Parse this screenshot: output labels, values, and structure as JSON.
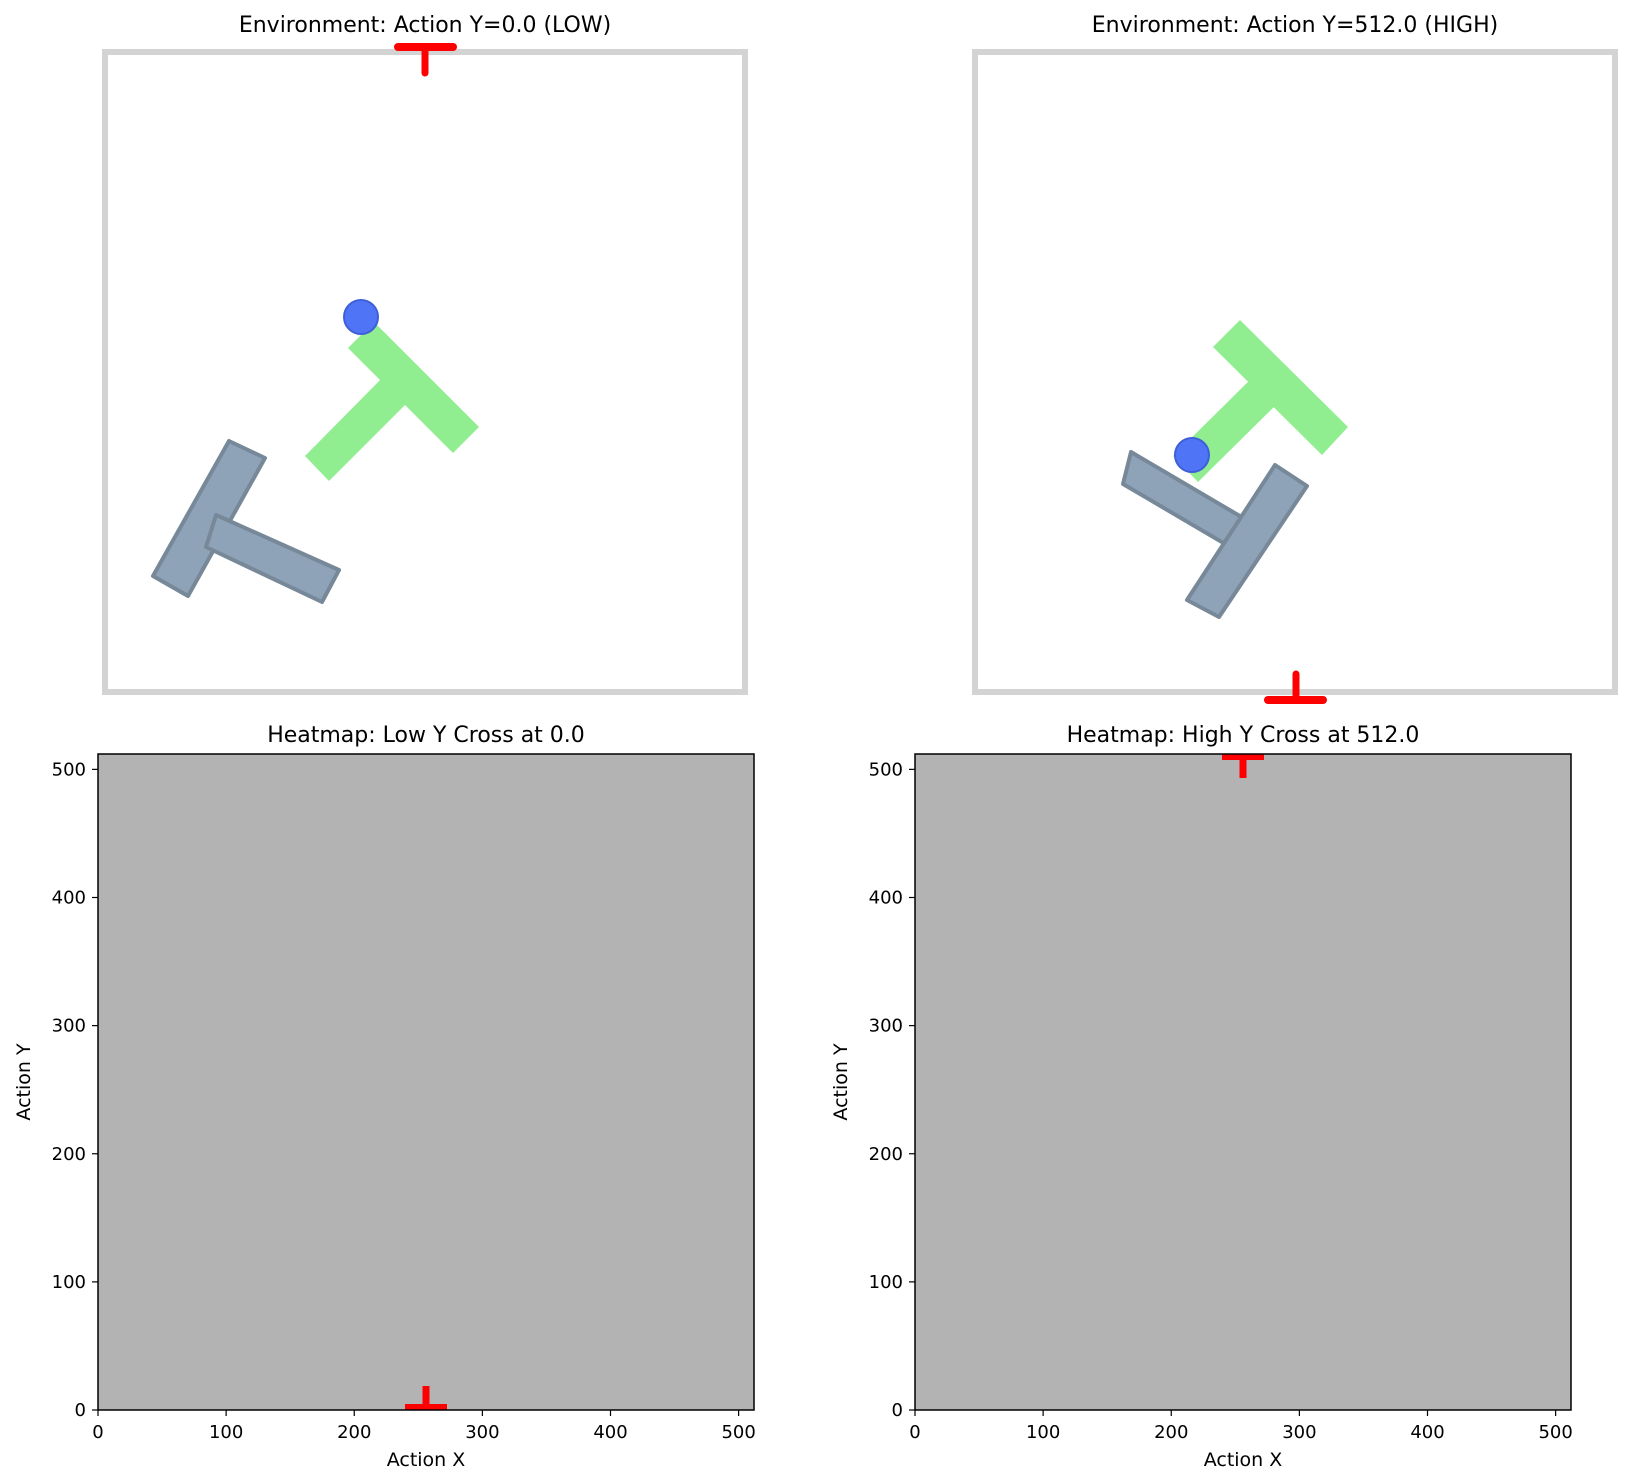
{
  "panels": {
    "env_low": {
      "title": "Environment: Action Y=0.0 (LOW)",
      "marker": {
        "x": 256,
        "y": 0.0
      }
    },
    "env_high": {
      "title": "Environment: Action Y=512.0 (HIGH)",
      "marker": {
        "x": 256,
        "y": 512.0
      }
    }
  },
  "colors": {
    "boundary": "#d3d3d3",
    "goal_t": "#90ee90",
    "block_t": "#8fa3b8",
    "block_outline": "#778899",
    "agent": "#4f74f5",
    "marker": "#ff0000",
    "heatmap_fill": "#b3b3b3"
  },
  "chart_data": [
    {
      "type": "heatmap",
      "title": "Heatmap: Low Y Cross at 0.0",
      "xlabel": "Action X",
      "ylabel": "Action Y",
      "xlim": [
        0,
        512
      ],
      "ylim": [
        0,
        512
      ],
      "xticks": [
        0,
        100,
        200,
        300,
        400,
        500
      ],
      "yticks": [
        0,
        100,
        200,
        300,
        400,
        500
      ],
      "values_uniform": true,
      "marker": {
        "x": 256,
        "y": 0.0
      }
    },
    {
      "type": "heatmap",
      "title": "Heatmap: High Y Cross at 512.0",
      "xlabel": "Action X",
      "ylabel": "Action Y",
      "xlim": [
        0,
        512
      ],
      "ylim": [
        0,
        512
      ],
      "xticks": [
        0,
        100,
        200,
        300,
        400,
        500
      ],
      "yticks": [
        0,
        100,
        200,
        300,
        400,
        500
      ],
      "values_uniform": true,
      "marker": {
        "x": 256,
        "y": 512.0
      }
    }
  ]
}
